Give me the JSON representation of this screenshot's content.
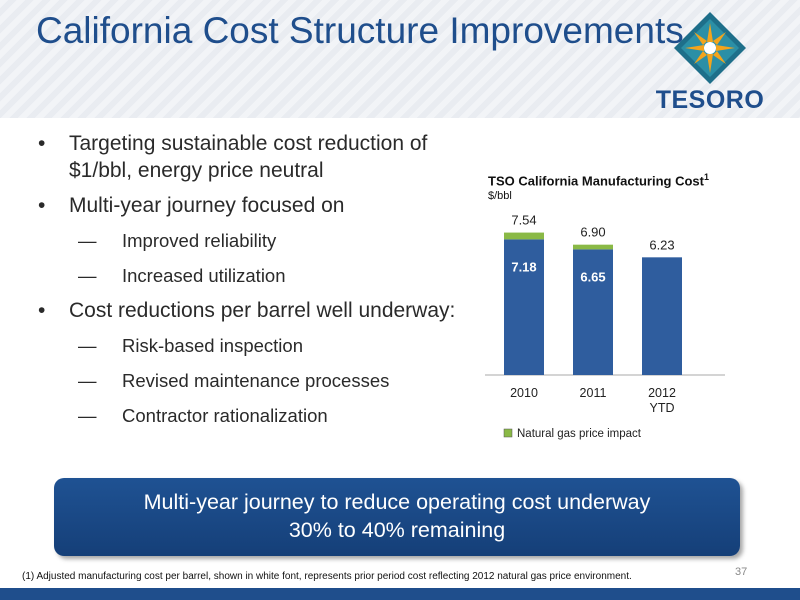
{
  "slide": {
    "title": "California Cost Structure Improvements",
    "logo_text": "TESORO",
    "page_number": "37",
    "footnote": "(1)  Adjusted manufacturing cost per barrel, shown in white font, represents prior period cost reflecting 2012 natural gas price environment."
  },
  "bullets": [
    {
      "text": "Targeting sustainable cost reduction of $1/bbl, energy price neutral",
      "subs": []
    },
    {
      "text": "Multi-year journey focused on",
      "subs": [
        "Improved reliability",
        "Increased utilization"
      ]
    },
    {
      "text": "Cost reductions per barrel well underway:",
      "subs": [
        "Risk-based inspection",
        "Revised maintenance processes",
        "Contractor rationalization"
      ]
    }
  ],
  "banner": {
    "line1": "Multi-year journey to reduce operating cost underway",
    "line2": "30% to 40% remaining"
  },
  "chart_data": {
    "type": "bar",
    "title": "TSO California Manufacturing Cost",
    "title_superscript": "1",
    "unit": "$/bbl",
    "categories": [
      "2010",
      "2011",
      "2012\nYTD"
    ],
    "stacked": true,
    "series": [
      {
        "name": "",
        "values": [
          7.18,
          6.65,
          6.23
        ],
        "color": "#2f5d9e",
        "inner_labels": [
          "7.18",
          "6.65",
          ""
        ]
      },
      {
        "name": "Natural gas price impact",
        "values": [
          0.36,
          0.25,
          0
        ],
        "color": "#8ab946"
      }
    ],
    "totals": [
      7.54,
      6.9,
      6.23
    ],
    "total_labels": [
      "7.54",
      "6.90",
      "6.23"
    ],
    "ylim": [
      0,
      9
    ],
    "legend": "bottom",
    "grid": false
  }
}
